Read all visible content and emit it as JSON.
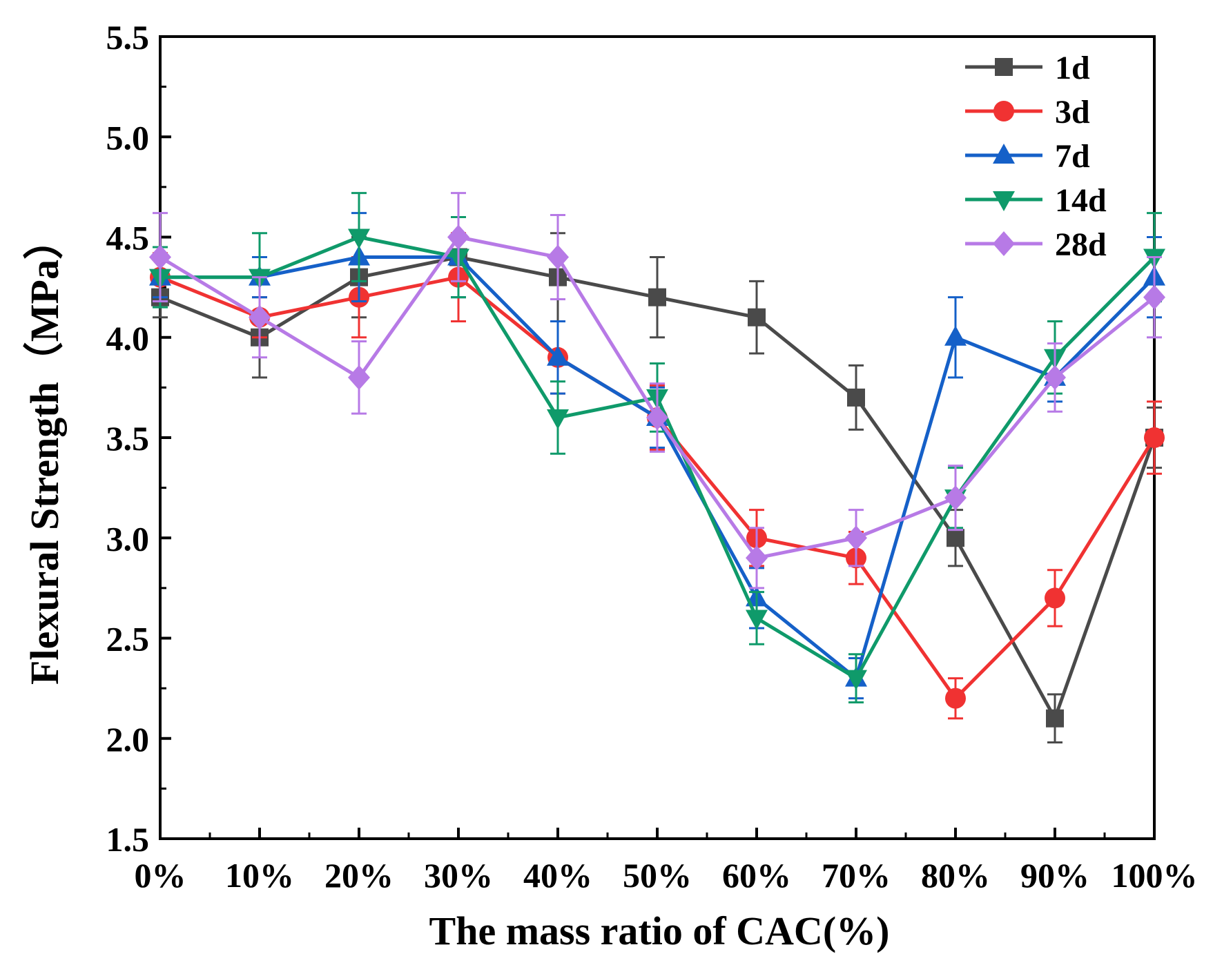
{
  "chart_data": {
    "type": "line",
    "title": "",
    "xlabel": "The mass ratio of CAC(%)",
    "ylabel": "Flexural Strength（MPa）",
    "ylim": [
      1.5,
      5.5
    ],
    "yticks": [
      "1.5",
      "2.0",
      "2.5",
      "3.0",
      "3.5",
      "4.0",
      "4.5",
      "5.0",
      "5.5"
    ],
    "categories": [
      "0%",
      "10%",
      "20%",
      "30%",
      "40%",
      "50%",
      "60%",
      "70%",
      "80%",
      "90%",
      "100%"
    ],
    "legend_position": "top-right",
    "series": [
      {
        "name": "1d",
        "color": "#4a4a4a",
        "marker": "square",
        "values": [
          4.2,
          4.0,
          4.3,
          4.4,
          4.3,
          4.2,
          4.1,
          3.7,
          3.0,
          2.1,
          3.5
        ],
        "errors": [
          0.1,
          0.2,
          0.2,
          0.2,
          0.22,
          0.2,
          0.18,
          0.16,
          0.14,
          0.12,
          0.15
        ]
      },
      {
        "name": "3d",
        "color": "#f03232",
        "marker": "circle",
        "values": [
          4.3,
          4.1,
          4.2,
          4.3,
          3.9,
          3.6,
          3.0,
          2.9,
          2.2,
          2.7,
          3.5
        ],
        "errors": [
          0.12,
          0.1,
          0.2,
          0.22,
          0.18,
          0.16,
          0.14,
          0.13,
          0.1,
          0.14,
          0.18
        ]
      },
      {
        "name": "7d",
        "color": "#1560c8",
        "marker": "triangle-up",
        "values": [
          4.3,
          4.3,
          4.4,
          4.4,
          3.9,
          3.6,
          2.7,
          2.3,
          4.0,
          3.8,
          4.3
        ],
        "errors": [
          0.1,
          0.1,
          0.22,
          0.2,
          0.18,
          0.15,
          0.15,
          0.1,
          0.2,
          0.12,
          0.2
        ]
      },
      {
        "name": "14d",
        "color": "#0f9a6a",
        "marker": "triangle-down",
        "values": [
          4.3,
          4.3,
          4.5,
          4.4,
          3.6,
          3.7,
          2.6,
          2.3,
          3.2,
          3.9,
          4.4
        ],
        "errors": [
          0.15,
          0.22,
          0.22,
          0.2,
          0.18,
          0.17,
          0.13,
          0.12,
          0.15,
          0.18,
          0.22
        ]
      },
      {
        "name": "28d",
        "color": "#b77ae6",
        "marker": "diamond",
        "values": [
          4.4,
          4.1,
          3.8,
          4.5,
          4.4,
          3.6,
          2.9,
          3.0,
          3.2,
          3.8,
          4.2
        ],
        "errors": [
          0.22,
          0.2,
          0.18,
          0.22,
          0.21,
          0.17,
          0.15,
          0.14,
          0.16,
          0.17,
          0.2
        ]
      }
    ]
  }
}
